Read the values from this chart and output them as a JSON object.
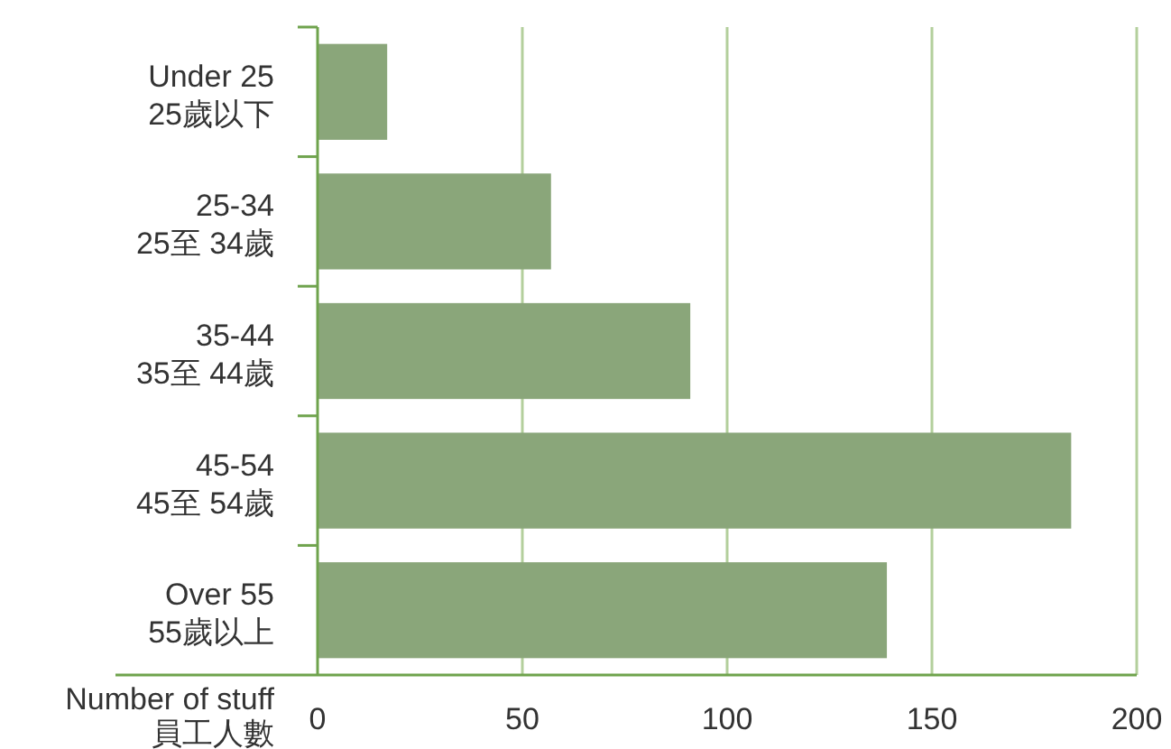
{
  "chart_data": {
    "type": "bar",
    "orientation": "horizontal",
    "xlabel": "Number of stuff\n員工人數",
    "categories": [
      "Under 25\n25歲以下",
      "25-34\n25至 34歲",
      "35-44\n35至 44歲",
      "45-54\n45至 54歲",
      "Over 55\n55歲以上"
    ],
    "values": [
      17,
      57,
      91,
      184,
      139
    ],
    "color": "#8aa67a",
    "xlim": [
      0,
      200
    ],
    "xticks": [
      0,
      50,
      100,
      150,
      200
    ],
    "grid": "x"
  }
}
